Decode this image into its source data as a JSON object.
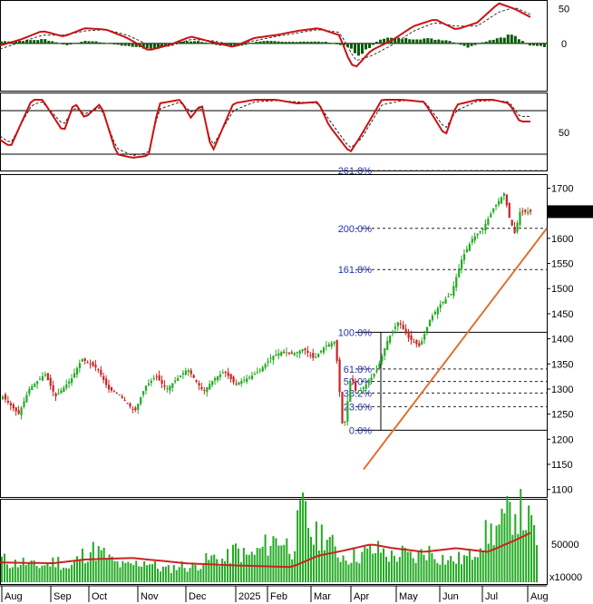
{
  "chart_data": [
    {
      "type": "line",
      "panel": "oscillator-histogram",
      "y_ticks": [
        "50",
        "0"
      ],
      "ylim": [
        -55,
        60
      ],
      "grid": false,
      "series": [],
      "x_fraction": [
        0,
        0.04,
        0.08,
        0.12,
        0.16,
        0.2,
        0.24,
        0.28,
        0.32,
        0.36,
        0.4,
        0.44,
        0.48,
        0.52,
        0.56,
        0.6,
        0.64,
        0.66,
        0.67,
        0.7,
        0.74,
        0.78,
        0.82,
        0.86,
        0.9,
        0.94,
        0.97,
        1.0
      ],
      "line_values": [
        -3,
        6,
        18,
        10,
        22,
        20,
        8,
        -10,
        -2,
        10,
        2,
        -5,
        8,
        12,
        18,
        22,
        12,
        -28,
        -35,
        -10,
        5,
        25,
        35,
        20,
        30,
        58,
        50,
        38
      ],
      "signal_values": [
        -8,
        2,
        12,
        12,
        18,
        20,
        12,
        -2,
        -4,
        6,
        4,
        -2,
        4,
        10,
        15,
        20,
        16,
        -10,
        -25,
        -18,
        -2,
        18,
        30,
        25,
        25,
        45,
        52,
        42
      ],
      "histogram_values": [
        3,
        4,
        6,
        -2,
        4,
        0,
        -4,
        -8,
        2,
        4,
        -2,
        -3,
        4,
        2,
        3,
        2,
        -4,
        -18,
        -10,
        8,
        7,
        7,
        5,
        -5,
        5,
        13,
        -2,
        -4
      ]
    },
    {
      "type": "line",
      "panel": "stochastic",
      "y_ticks": [
        "50"
      ],
      "ylim": [
        0,
        100
      ],
      "reference_lines": [
        80,
        20
      ],
      "x_fraction": [
        0,
        0.02,
        0.06,
        0.08,
        0.12,
        0.14,
        0.16,
        0.19,
        0.22,
        0.25,
        0.28,
        0.3,
        0.34,
        0.36,
        0.38,
        0.4,
        0.44,
        0.48,
        0.52,
        0.56,
        0.6,
        0.62,
        0.66,
        0.68,
        0.72,
        0.76,
        0.8,
        0.84,
        0.86,
        0.9,
        0.93,
        0.96,
        0.98
      ],
      "k_values": [
        40,
        30,
        95,
        95,
        50,
        92,
        70,
        90,
        20,
        15,
        18,
        90,
        95,
        70,
        90,
        22,
        90,
        95,
        95,
        90,
        92,
        60,
        22,
        45,
        95,
        95,
        92,
        45,
        88,
        95,
        95,
        90,
        65
      ],
      "d_values": [
        45,
        35,
        88,
        92,
        60,
        85,
        75,
        85,
        28,
        18,
        22,
        82,
        92,
        78,
        85,
        30,
        80,
        92,
        94,
        92,
        90,
        68,
        28,
        40,
        88,
        94,
        93,
        55,
        80,
        93,
        94,
        92,
        72
      ]
    },
    {
      "type": "line",
      "panel": "price",
      "y_ticks": [
        "1700",
        "1650",
        "1600",
        "1550",
        "1500",
        "1450",
        "1400",
        "1350",
        "1300",
        "1250",
        "1200",
        "1150",
        "1100"
      ],
      "ylim": [
        1085,
        1728
      ],
      "last_value": "1653.220",
      "x_fraction": [
        0,
        0.03,
        0.05,
        0.08,
        0.1,
        0.13,
        0.15,
        0.18,
        0.2,
        0.22,
        0.25,
        0.27,
        0.29,
        0.31,
        0.33,
        0.35,
        0.38,
        0.4,
        0.42,
        0.44,
        0.47,
        0.49,
        0.51,
        0.53,
        0.55,
        0.57,
        0.59,
        0.61,
        0.63,
        0.645,
        0.66,
        0.67,
        0.69,
        0.71,
        0.73,
        0.75,
        0.77,
        0.79,
        0.81,
        0.83,
        0.85,
        0.87,
        0.89,
        0.91,
        0.93,
        0.95,
        0.96,
        0.97,
        0.98
      ],
      "close_values": [
        1285,
        1250,
        1300,
        1330,
        1285,
        1320,
        1360,
        1340,
        1300,
        1290,
        1255,
        1305,
        1325,
        1300,
        1320,
        1340,
        1295,
        1320,
        1335,
        1310,
        1325,
        1340,
        1365,
        1375,
        1370,
        1380,
        1360,
        1385,
        1395,
        1210,
        1330,
        1290,
        1310,
        1340,
        1400,
        1435,
        1400,
        1385,
        1440,
        1470,
        1490,
        1560,
        1600,
        1620,
        1660,
        1690,
        1640,
        1610,
        1653
      ],
      "trendline": [
        [
          0.665,
          1140
        ],
        [
          1.0,
          1620
        ]
      ],
      "fibonacci": {
        "labels": [
          "261.8%",
          "200.0%",
          "161.8%",
          "100.0%",
          "61.8%",
          "50.0%",
          "38.2%",
          "23.6%",
          "0.0%"
        ],
        "levels": [
          1735,
          1620,
          1538,
          1413,
          1340,
          1315,
          1292,
          1265,
          1218
        ]
      }
    },
    {
      "type": "bar",
      "panel": "volume",
      "y_ticks": [
        "50000"
      ],
      "y_unit": "x10000",
      "ylim": [
        0,
        110000
      ],
      "avg_x_fraction": [
        0,
        0.1,
        0.16,
        0.25,
        0.35,
        0.45,
        0.55,
        0.6,
        0.65,
        0.7,
        0.74,
        0.8,
        0.86,
        0.92,
        0.97,
        1.0
      ],
      "avg_values": [
        26000,
        25000,
        30000,
        32000,
        25000,
        22000,
        20000,
        35000,
        42000,
        50000,
        45000,
        40000,
        45000,
        40000,
        55000,
        65000
      ],
      "volume_profile": [
        32000,
        26000,
        28000,
        22000,
        25000,
        30000,
        18000,
        35000,
        45000,
        40000,
        28000,
        22000,
        25000,
        30000,
        20000,
        18000,
        24000,
        20000,
        28000,
        34000,
        30000,
        45000,
        35000,
        42000,
        55000,
        62000,
        45000,
        100000,
        60000,
        70000,
        40000,
        35000,
        38000,
        42000,
        45000,
        35000,
        40000,
        32000,
        45000,
        38000,
        30000,
        32000,
        35000,
        60000,
        70000,
        80000,
        105000,
        90000,
        60000
      ]
    }
  ],
  "x_axis": {
    "months": [
      "Aug",
      "Sep",
      "Oct",
      "Nov",
      "Dec",
      "2025",
      "Feb",
      "Mar",
      "Apr",
      "May",
      "Jun",
      "Jul",
      "Aug"
    ]
  },
  "colors": {
    "up": "#22aa22",
    "down": "#cc2222",
    "line": "#cc1111",
    "signal": "#333333",
    "histogram": "#0a5a0a",
    "trendline": "#e07030",
    "fib_text": "#2233aa",
    "volume": "#22aa22",
    "last_price_bg": "#000000",
    "last_price_fg": "#22ff22"
  }
}
